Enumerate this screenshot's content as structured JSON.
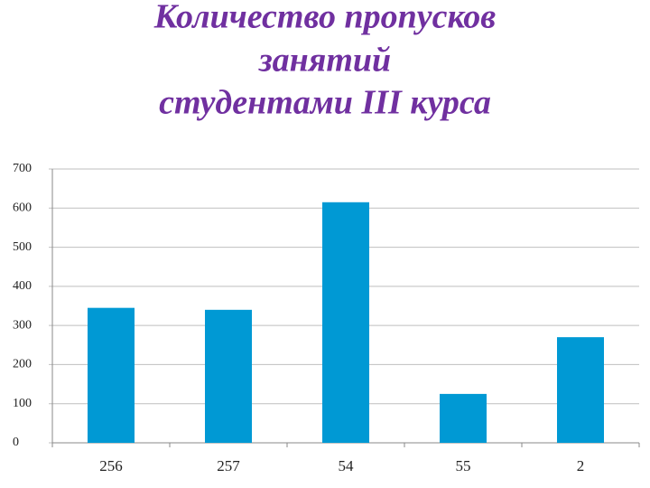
{
  "chart_data": {
    "type": "bar",
    "title": [
      "Количество пропусков",
      "занятий",
      "студентами III курса"
    ],
    "categories": [
      "256",
      "257",
      "54",
      "55",
      "2"
    ],
    "values": [
      345,
      340,
      615,
      125,
      270
    ],
    "color": "#0099d4",
    "ylim": [
      0,
      700
    ],
    "yticks": [
      0,
      100,
      200,
      300,
      400,
      500,
      600,
      700
    ],
    "grid": true
  }
}
